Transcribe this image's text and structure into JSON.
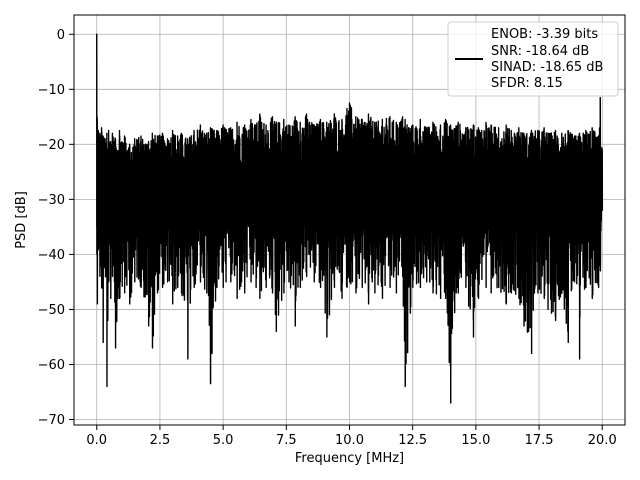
{
  "chart_data": {
    "type": "line",
    "xlabel": "Frequency [MHz]",
    "ylabel": "PSD [dB]",
    "xlim": [
      -0.9,
      20.9
    ],
    "ylim": [
      -71,
      3.5
    ],
    "xticks": [
      0.0,
      2.5,
      5.0,
      7.5,
      10.0,
      12.5,
      15.0,
      17.5,
      20.0
    ],
    "xtick_labels": [
      "0.0",
      "2.5",
      "5.0",
      "7.5",
      "10.0",
      "12.5",
      "15.0",
      "17.5",
      "20.0"
    ],
    "yticks": [
      0,
      -10,
      -20,
      -30,
      -40,
      -50,
      -60,
      -70
    ],
    "ytick_labels": [
      "0",
      "−10",
      "−20",
      "−30",
      "−40",
      "−50",
      "−60",
      "−70"
    ],
    "grid": true,
    "legend_position": "top-right",
    "series": [
      {
        "color": "#000000",
        "x": [
          0.0,
          0.02,
          0.06,
          0.12,
          0.19,
          0.25,
          0.33,
          0.4,
          0.47,
          0.55,
          0.62,
          0.74,
          0.9,
          1.1,
          1.3,
          1.5,
          1.75,
          2.05,
          2.2,
          2.4,
          2.6,
          2.8,
          3.0,
          3.2,
          3.35,
          3.6,
          3.85,
          4.1,
          4.35,
          4.5,
          4.75,
          5.0,
          5.3,
          5.55,
          5.85,
          6.1,
          6.3,
          6.45,
          6.7,
          6.95,
          7.1,
          7.4,
          7.6,
          7.85,
          8.05,
          8.3,
          8.6,
          8.85,
          9.1,
          9.4,
          9.7,
          9.9,
          10.0,
          10.25,
          10.5,
          10.75,
          11.0,
          11.3,
          11.6,
          11.85,
          12.1,
          12.2,
          12.5,
          12.8,
          13.05,
          13.3,
          13.6,
          13.8,
          14.0,
          14.3,
          14.6,
          14.9,
          15.1,
          15.4,
          15.6,
          15.9,
          16.2,
          16.4,
          16.7,
          16.9,
          17.2,
          17.45,
          17.7,
          17.85,
          18.15,
          18.4,
          18.65,
          18.9,
          19.1,
          19.35,
          19.6,
          19.85,
          19.92,
          20.0
        ],
        "ymax": [
          0.0,
          -16,
          -17.5,
          -18,
          -17,
          -18.5,
          -19,
          -18,
          -17.5,
          -19.5,
          -18,
          -19,
          -17.5,
          -18.5,
          -20,
          -19,
          -18.5,
          -19.5,
          -18,
          -18.5,
          -18,
          -19,
          -17.5,
          -18.5,
          -18,
          -19,
          -17.5,
          -16.5,
          -18,
          -17,
          -17.5,
          -16.5,
          -17,
          -16,
          -16.5,
          -15.5,
          -16.5,
          -14.5,
          -16.5,
          -15,
          -16,
          -15.5,
          -16.5,
          -15,
          -16,
          -14.5,
          -16.5,
          -15.5,
          -16,
          -14.5,
          -15.5,
          -13.5,
          -12.5,
          -15,
          -15.5,
          -14.5,
          -16,
          -15.5,
          -15,
          -16,
          -15,
          -15.5,
          -16.5,
          -15.5,
          -17,
          -16,
          -16.5,
          -15.5,
          -16.5,
          -16,
          -17,
          -16.5,
          -17,
          -16,
          -16.5,
          -17,
          -16.5,
          -17.5,
          -17,
          -18,
          -17.5,
          -17.5,
          -17,
          -18,
          -17.5,
          -18,
          -17.5,
          -18.5,
          -18,
          -17.5,
          -17,
          -18.5,
          -11.5,
          -21
        ],
        "ymin": [
          -35,
          -49,
          -39,
          -44,
          -46,
          -56,
          -42,
          -64,
          -45,
          -48,
          -44,
          -57,
          -48,
          -47,
          -49,
          -45,
          -46,
          -53,
          -57,
          -47,
          -46,
          -45,
          -49,
          -46,
          -47,
          -59,
          -46,
          -45,
          -47,
          -63.5,
          -46,
          -46,
          -45,
          -48,
          -47,
          -45,
          -46,
          -48,
          -46,
          -47,
          -54,
          -47,
          -45,
          -53,
          -46,
          -44,
          -45,
          -46,
          -55,
          -46,
          -48,
          -46,
          -45,
          -47,
          -46,
          -49,
          -47,
          -48,
          -46,
          -47,
          -44,
          -64,
          -46,
          -46,
          -45,
          -47,
          -48,
          -48,
          -67,
          -47,
          -46,
          -55,
          -48,
          -46,
          -47,
          -46,
          -49,
          -47,
          -48,
          -53,
          -58,
          -47,
          -48,
          -50,
          -52,
          -47,
          -56,
          -45,
          -59,
          -46,
          -48,
          -46,
          -43,
          -32
        ]
      }
    ],
    "legend": {
      "lines": [
        "ENOB: -3.39 bits",
        "SNR: -18.64 dB",
        "SINAD: -18.65 dB",
        "SFDR: 8.15"
      ]
    }
  }
}
